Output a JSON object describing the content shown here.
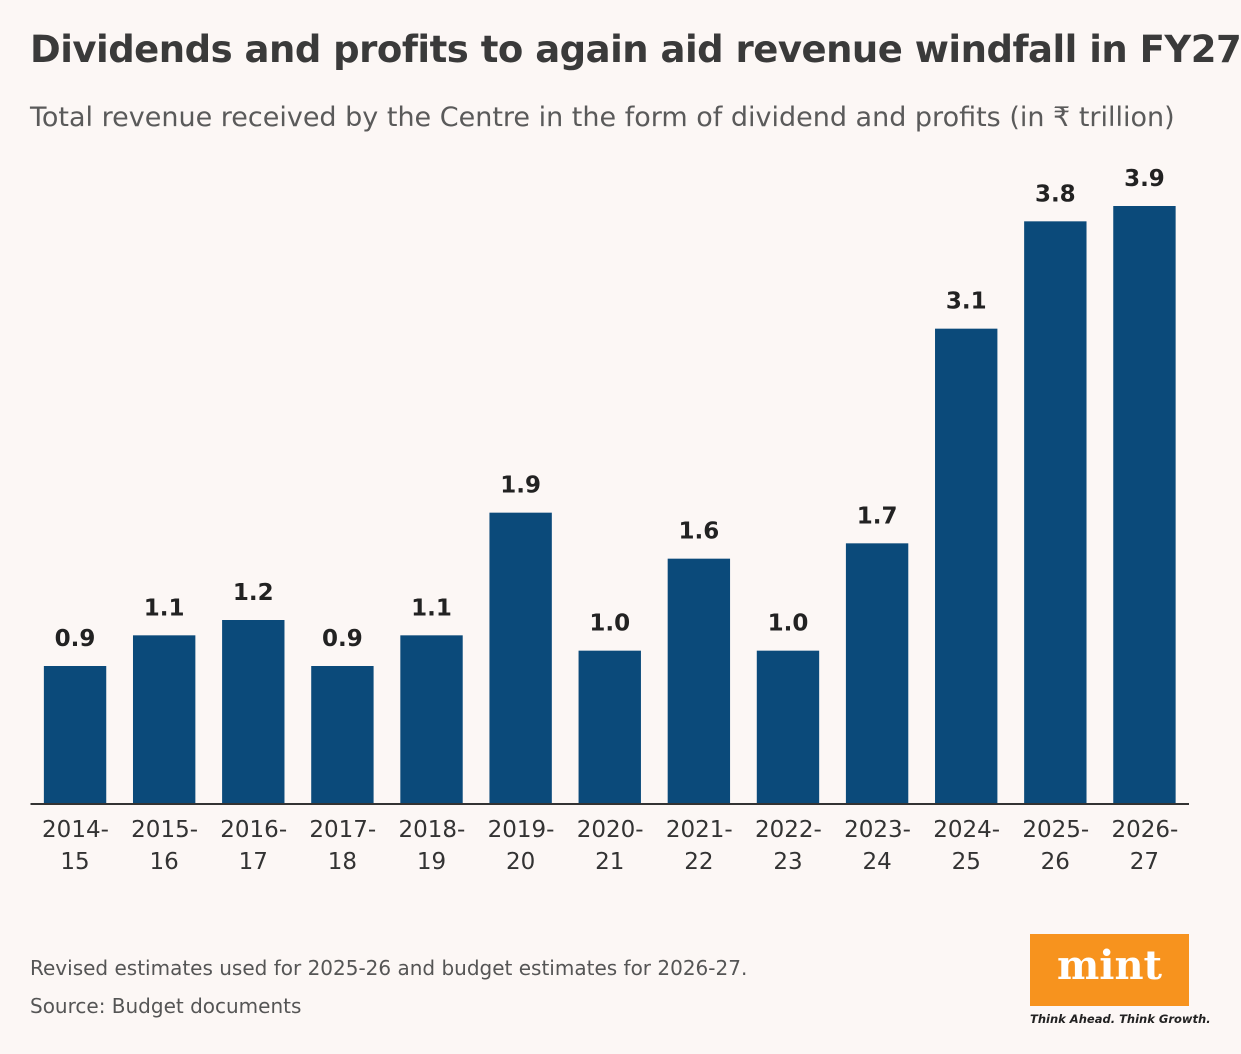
{
  "title": "Dividends and profits to again aid revenue windfall in FY27",
  "subtitle": "Total revenue received by the Centre in the form of dividend and profits (in ₹ trillion)",
  "chart_data": {
    "type": "bar",
    "categories": [
      "2014-15",
      "2015-16",
      "2016-17",
      "2017-18",
      "2018-19",
      "2019-20",
      "2020-21",
      "2021-22",
      "2022-23",
      "2023-24",
      "2024-25",
      "2025-26",
      "2026-27"
    ],
    "values": [
      0.9,
      1.1,
      1.2,
      0.9,
      1.1,
      1.9,
      1.0,
      1.6,
      1.0,
      1.7,
      3.1,
      3.8,
      3.9
    ],
    "value_labels": [
      "0.9",
      "1.1",
      "1.2",
      "0.9",
      "1.1",
      "1.9",
      "1.0",
      "1.6",
      "1.0",
      "1.7",
      "3.1",
      "3.8",
      "3.9"
    ],
    "color": "#0b4a7a",
    "ylim": [
      0,
      3.9
    ]
  },
  "notes": [
    "Revised estimates used for 2025-26 and budget estimates for 2026-27.",
    "Source: Budget documents"
  ],
  "logo": {
    "name": "mint",
    "tagline": "Think Ahead. Think Growth."
  }
}
